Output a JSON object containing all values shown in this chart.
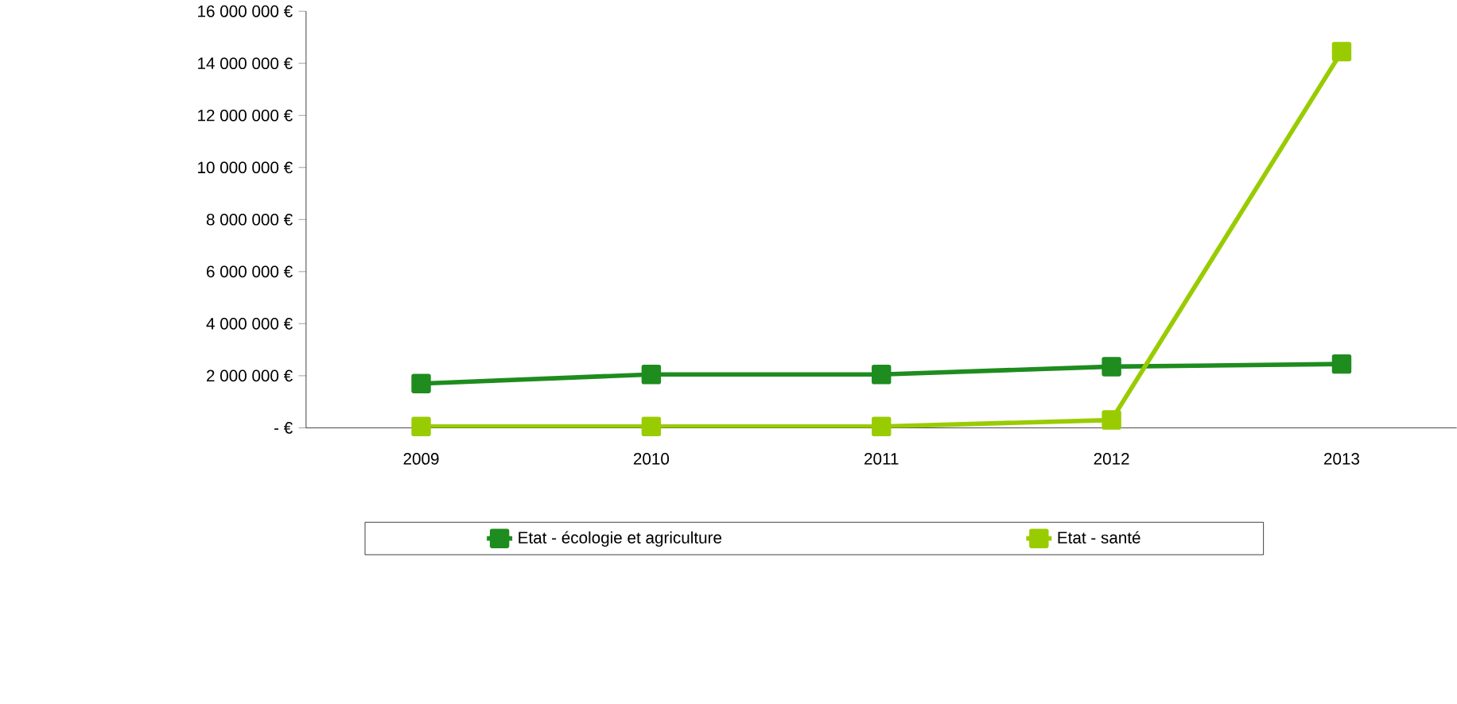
{
  "chart_data": {
    "type": "line",
    "categories": [
      "2009",
      "2010",
      "2011",
      "2012",
      "2013"
    ],
    "series": [
      {
        "name": "Etat - écologie et agriculture",
        "color": "#1e8c1e",
        "values": [
          1700000,
          2050000,
          2050000,
          2350000,
          2450000
        ]
      },
      {
        "name": "Etat - santé",
        "color": "#99cc00",
        "values": [
          50000,
          50000,
          50000,
          300000,
          14450000
        ]
      }
    ],
    "ylim": [
      0,
      16000000
    ],
    "yticks": [
      {
        "value": 0,
        "label": "-   €"
      },
      {
        "value": 2000000,
        "label": "2 000 000 €"
      },
      {
        "value": 4000000,
        "label": "4 000 000 €"
      },
      {
        "value": 6000000,
        "label": "6 000 000 €"
      },
      {
        "value": 8000000,
        "label": "8 000 000 €"
      },
      {
        "value": 10000000,
        "label": "10 000 000 €"
      },
      {
        "value": 12000000,
        "label": "12 000 000 €"
      },
      {
        "value": 14000000,
        "label": "14 000 000 €"
      },
      {
        "value": 16000000,
        "label": "16 000 000 €"
      }
    ],
    "grid": false,
    "legend": "bottom",
    "marker": "square",
    "line_style": "solid"
  }
}
